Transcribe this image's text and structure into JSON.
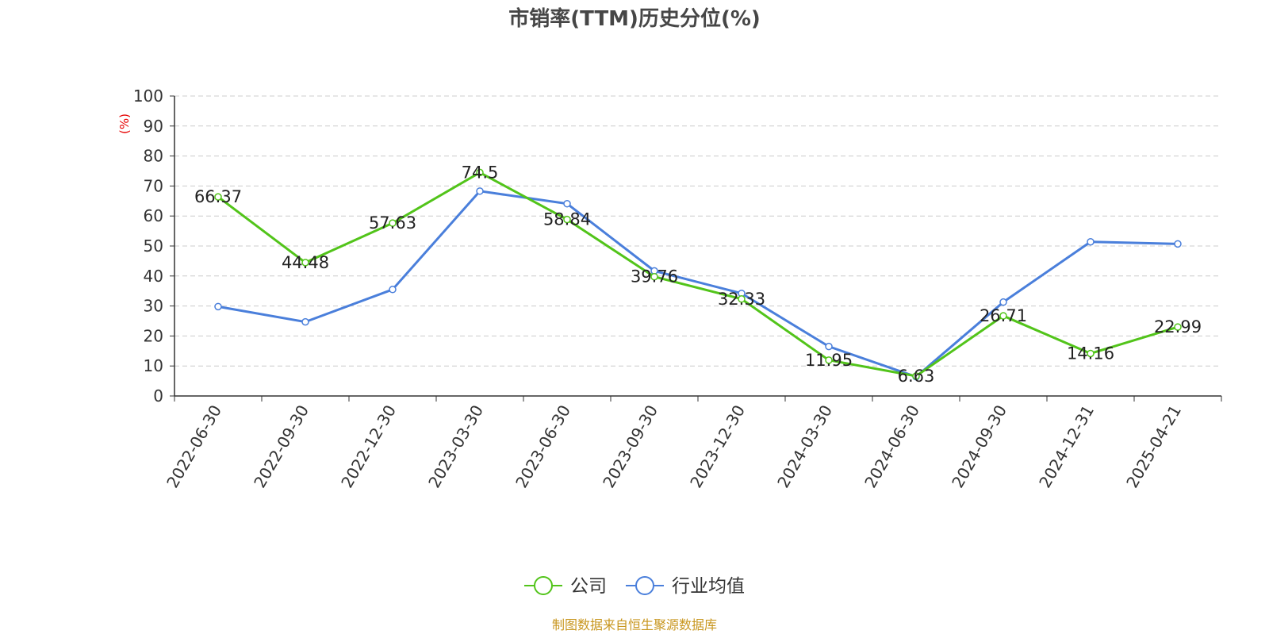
{
  "chart_data": {
    "type": "line",
    "title": "市销率(TTM)历史分位(%)",
    "ylabel": "(%)",
    "xlabel": "",
    "ylim": [
      0,
      100
    ],
    "yticks": [
      0,
      10,
      20,
      30,
      40,
      50,
      60,
      70,
      80,
      90,
      100
    ],
    "grid": true,
    "legend_position": "bottom-center",
    "categories": [
      "2022-06-30",
      "2022-09-30",
      "2022-12-30",
      "2023-03-30",
      "2023-06-30",
      "2023-09-30",
      "2023-12-30",
      "2024-03-30",
      "2024-06-30",
      "2024-09-30",
      "2024-12-31",
      "2025-04-21"
    ],
    "series": [
      {
        "name": "公司",
        "color": "#52c41a",
        "values": [
          66.37,
          44.48,
          57.63,
          74.5,
          58.84,
          39.76,
          32.33,
          11.95,
          6.63,
          26.71,
          14.16,
          22.99
        ],
        "data_labels": [
          "66.37",
          "44.48",
          "57.63",
          "74.5",
          "58.84",
          "39.76",
          "32.33",
          "11.95",
          "6.63",
          "26.71",
          "14.16",
          "22.99"
        ]
      },
      {
        "name": "行业均值",
        "color": "#4a7fdb",
        "values": [
          29.8,
          24.7,
          35.5,
          68.3,
          64.1,
          41.7,
          34.2,
          16.5,
          6.4,
          31.3,
          51.4,
          50.7
        ]
      }
    ],
    "source_text": "制图数据来自恒生聚源数据库",
    "source_color": "#c8961e",
    "ylabel_color": "#e60000"
  }
}
